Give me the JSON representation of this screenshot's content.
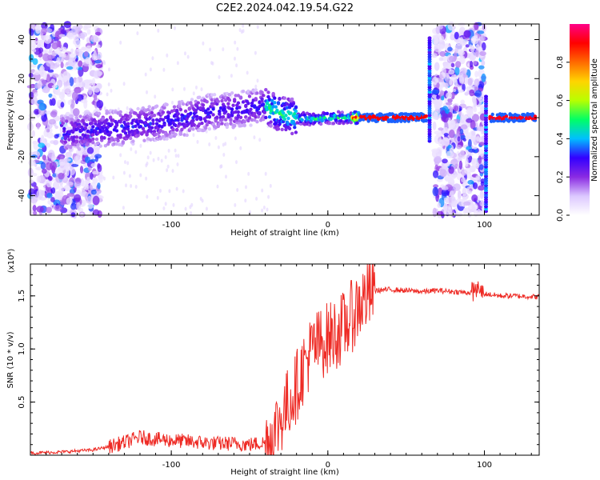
{
  "title": "C2E2.2024.042.19.54.G22",
  "chart_data": [
    {
      "type": "heatmap",
      "name": "spectrogram",
      "xlabel": "Height of straight line (km)",
      "ylabel": "Frequency (Hz)",
      "xlim": [
        -190,
        135
      ],
      "ylim": [
        -50,
        48
      ],
      "xticks": [
        -100,
        0,
        100
      ],
      "yticks": [
        -40,
        -20,
        0,
        20,
        40
      ],
      "colorbar": {
        "label": "Normalized spectral amplitude",
        "range": [
          0,
          1
        ],
        "ticks": [
          0.0,
          0.2,
          0.4,
          0.6,
          0.8
        ],
        "colors": [
          "#ffffff",
          "#dcc8ff",
          "#8a2be2",
          "#3300ff",
          "#00bfff",
          "#00ff66",
          "#b8ff00",
          "#ffd400",
          "#ff6a00",
          "#ff0000",
          "#ff0088"
        ]
      },
      "ridge": {
        "x": [
          -165,
          -150,
          -130,
          -110,
          -90,
          -75,
          -60,
          -50,
          -40,
          -30,
          -20,
          -10,
          0,
          10,
          20,
          40,
          60
        ],
        "y": [
          -8,
          -6,
          -5,
          -3,
          0,
          3,
          4,
          5,
          6,
          2,
          0,
          -1,
          0,
          0,
          0,
          0,
          0
        ]
      },
      "noise_bands": [
        {
          "x": [
            -190,
            -145
          ]
        },
        {
          "x": [
            68,
            100
          ]
        }
      ],
      "spikes": [
        {
          "x": 65,
          "y": [
            -12,
            42
          ]
        },
        {
          "x": 101,
          "y": [
            -48,
            12
          ]
        }
      ]
    },
    {
      "type": "line",
      "name": "snr",
      "xlabel": "Height of straight line (km)",
      "ylabel": "SNR (10 * v/v)",
      "yscale_label": "(x10⁴)",
      "xlim": [
        -190,
        135
      ],
      "ylim": [
        0,
        1.8
      ],
      "xticks": [
        -100,
        0,
        100
      ],
      "yticks": [
        0.5,
        1.0,
        1.5
      ],
      "ytick_labels": [
        "0.5",
        "1.0",
        "1.5"
      ],
      "color": "#ee2a24",
      "series": [
        {
          "x": [
            -190,
            -170,
            -150,
            -140,
            -130,
            -120,
            -110,
            -100,
            -90,
            -80,
            -70,
            -60,
            -50,
            -40,
            -35,
            -30,
            -25,
            -20,
            -15,
            -10,
            -5,
            0,
            5,
            10,
            15,
            20,
            25,
            30,
            40,
            50,
            60,
            70,
            80,
            90,
            95,
            100,
            110,
            120,
            135
          ],
          "y": [
            0.02,
            0.03,
            0.05,
            0.08,
            0.12,
            0.17,
            0.15,
            0.14,
            0.13,
            0.12,
            0.11,
            0.11,
            0.1,
            0.12,
            0.2,
            0.35,
            0.5,
            0.65,
            0.85,
            1.0,
            1.05,
            1.1,
            1.15,
            1.2,
            1.3,
            1.42,
            1.5,
            1.55,
            1.56,
            1.55,
            1.54,
            1.55,
            1.54,
            1.53,
            1.55,
            1.52,
            1.5,
            1.5,
            1.49
          ]
        }
      ]
    }
  ]
}
